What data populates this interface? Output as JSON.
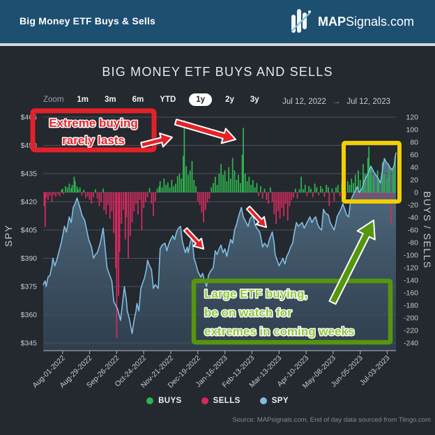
{
  "header": {
    "title": "Big Money ETF Buys & Sells",
    "brand_bold": "MAP",
    "brand_rest": "Signals.com"
  },
  "chart": {
    "title": "BIG MONEY ETF BUYS AND SELLS",
    "toolbar": {
      "zoom_label": "Zoom",
      "ranges": [
        "1m",
        "3m",
        "6m",
        "YTD",
        "1y",
        "2y",
        "3y"
      ],
      "selected": "1y",
      "date_from": "Jul 12, 2022",
      "date_arrow": "→",
      "date_to": "Jul 12, 2023"
    },
    "legend": [
      {
        "label": "BUYS",
        "color": "#2db44d"
      },
      {
        "label": "SELLS",
        "color": "#d42a5e"
      },
      {
        "label": "SPY",
        "color": "#7fbde0"
      }
    ],
    "source": "Source: MAPsignals.com, End of day data sourced from Tiingo.com"
  },
  "annotations": {
    "red_box": {
      "lines": [
        "Extreme buying",
        "rarely lasts"
      ],
      "color": "#e8262b",
      "border": "#e32228"
    },
    "green_box": {
      "lines": [
        "Large ETF buying,",
        "be on watch for",
        "extremes in coming weeks"
      ],
      "color": "#8fc83e",
      "border": "#57950e"
    },
    "yellow_box": {
      "border": "#f2cf04"
    }
  },
  "chart_data": {
    "type": "combo: bar (buys/sells flows, right axis) + area-line (SPY price, left axis)",
    "x_unit": "calendar days since Jul 12, 2022",
    "x_range_label": [
      "Jul 12, 2022",
      "Jul 12, 2023"
    ],
    "left_axis": {
      "title": "SPY",
      "ylim": [
        345,
        465
      ],
      "tick_step": 15,
      "tick_labels": [
        "$465",
        "$450",
        "$435",
        "$420",
        "$405",
        "$390",
        "$375",
        "$360",
        "$345"
      ]
    },
    "right_axis": {
      "title": "BUYS / SELLS",
      "ylim": [
        -240,
        120
      ],
      "tick_step": 20,
      "tick_labels": [
        120,
        100,
        80,
        60,
        40,
        20,
        0,
        -20,
        -40,
        -60,
        -80,
        -100,
        -120,
        -140,
        -160,
        -180,
        -200,
        -220,
        -240
      ]
    },
    "x_ticks": [
      {
        "day": 20,
        "label": "Aug-01-2022"
      },
      {
        "day": 48,
        "label": "Aug-29-2022"
      },
      {
        "day": 76,
        "label": "Sep-26-2022"
      },
      {
        "day": 104,
        "label": "Oct-24-2022"
      },
      {
        "day": 132,
        "label": "Nov-21-2022"
      },
      {
        "day": 160,
        "label": "Dec-19-2022"
      },
      {
        "day": 188,
        "label": "Jan-16-2023"
      },
      {
        "day": 216,
        "label": "Feb-13-2023"
      },
      {
        "day": 244,
        "label": "Mar-13-2023"
      },
      {
        "day": 272,
        "label": "Apr-10-2023"
      },
      {
        "day": 300,
        "label": "May-08-2023"
      },
      {
        "day": 328,
        "label": "Jun-05-2023"
      },
      {
        "day": 356,
        "label": "Jul-03-2023"
      }
    ],
    "grid": true,
    "legend_position": "bottom-center",
    "spy": [
      [
        0,
        376
      ],
      [
        2,
        378
      ],
      [
        3,
        375
      ],
      [
        5,
        380
      ],
      [
        7,
        381
      ],
      [
        9,
        386
      ],
      [
        10,
        390
      ],
      [
        12,
        386
      ],
      [
        14,
        389
      ],
      [
        16,
        393
      ],
      [
        17,
        395
      ],
      [
        19,
        399
      ],
      [
        22,
        407
      ],
      [
        24,
        404
      ],
      [
        27,
        412
      ],
      [
        29,
        409
      ],
      [
        31,
        417
      ],
      [
        33,
        419
      ],
      [
        35,
        422
      ],
      [
        38,
        417
      ],
      [
        40,
        413
      ],
      [
        43,
        410
      ],
      [
        45,
        405
      ],
      [
        47,
        400
      ],
      [
        50,
        396
      ],
      [
        52,
        390
      ],
      [
        54,
        392
      ],
      [
        56,
        393
      ],
      [
        59,
        398
      ],
      [
        62,
        406
      ],
      [
        64,
        396
      ],
      [
        66,
        385
      ],
      [
        68,
        382
      ],
      [
        71,
        378
      ],
      [
        73,
        367
      ],
      [
        75,
        365
      ],
      [
        77,
        363
      ],
      [
        80,
        357
      ],
      [
        82,
        366
      ],
      [
        84,
        375
      ],
      [
        86,
        368
      ],
      [
        87,
        362
      ],
      [
        89,
        358
      ],
      [
        92,
        350
      ],
      [
        94,
        357
      ],
      [
        96,
        362
      ],
      [
        97,
        366
      ],
      [
        99,
        362
      ],
      [
        101,
        374
      ],
      [
        103,
        377
      ],
      [
        105,
        380
      ],
      [
        107,
        385
      ],
      [
        108,
        389
      ],
      [
        110,
        386
      ],
      [
        112,
        384
      ],
      [
        114,
        374
      ],
      [
        116,
        376
      ],
      [
        119,
        374
      ],
      [
        121,
        395
      ],
      [
        123,
        397
      ],
      [
        126,
        398
      ],
      [
        128,
        394
      ],
      [
        129,
        396
      ],
      [
        131,
        399
      ],
      [
        134,
        402
      ],
      [
        136,
        400
      ],
      [
        138,
        404
      ],
      [
        140,
        406
      ],
      [
        142,
        407
      ],
      [
        144,
        399
      ],
      [
        147,
        393
      ],
      [
        149,
        396
      ],
      [
        150,
        393
      ],
      [
        152,
        398
      ],
      [
        154,
        402
      ],
      [
        156,
        390
      ],
      [
        158,
        387
      ],
      [
        160,
        383
      ],
      [
        163,
        380
      ],
      [
        165,
        382
      ],
      [
        167,
        378
      ],
      [
        169,
        375
      ],
      [
        171,
        381
      ],
      [
        173,
        383
      ],
      [
        176,
        385
      ],
      [
        178,
        394
      ],
      [
        180,
        392
      ],
      [
        182,
        395
      ],
      [
        184,
        397
      ],
      [
        186,
        393
      ],
      [
        188,
        395
      ],
      [
        190,
        391
      ],
      [
        192,
        396
      ],
      [
        194,
        400
      ],
      [
        196,
        398
      ],
      [
        198,
        405
      ],
      [
        200,
        408
      ],
      [
        202,
        412
      ],
      [
        205,
        417
      ],
      [
        207,
        412
      ],
      [
        209,
        410
      ],
      [
        212,
        407
      ],
      [
        214,
        411
      ],
      [
        217,
        413
      ],
      [
        219,
        408
      ],
      [
        221,
        406
      ],
      [
        224,
        404
      ],
      [
        226,
        399
      ],
      [
        227,
        396
      ],
      [
        229,
        398
      ],
      [
        232,
        396
      ],
      [
        234,
        400
      ],
      [
        237,
        404
      ],
      [
        239,
        398
      ],
      [
        240,
        392
      ],
      [
        242,
        389
      ],
      [
        244,
        386
      ],
      [
        246,
        388
      ],
      [
        248,
        390
      ],
      [
        250,
        387
      ],
      [
        252,
        391
      ],
      [
        254,
        393
      ],
      [
        256,
        396
      ],
      [
        258,
        398
      ],
      [
        260,
        404
      ],
      [
        262,
        409
      ],
      [
        264,
        407
      ],
      [
        266,
        408
      ],
      [
        268,
        409
      ],
      [
        270,
        406
      ],
      [
        272,
        408
      ],
      [
        274,
        410
      ],
      [
        276,
        412
      ],
      [
        278,
        409
      ],
      [
        280,
        411
      ],
      [
        282,
        412
      ],
      [
        284,
        408
      ],
      [
        286,
        406
      ],
      [
        288,
        405
      ],
      [
        290,
        416
      ],
      [
        292,
        414
      ],
      [
        295,
        413
      ],
      [
        297,
        409
      ],
      [
        299,
        407
      ],
      [
        301,
        405
      ],
      [
        303,
        409
      ],
      [
        304,
        412
      ],
      [
        306,
        414
      ],
      [
        308,
        416
      ],
      [
        310,
        419
      ],
      [
        312,
        416
      ],
      [
        314,
        413
      ],
      [
        316,
        412
      ],
      [
        318,
        420
      ],
      [
        320,
        423
      ],
      [
        322,
        425
      ],
      [
        325,
        428
      ],
      [
        327,
        425
      ],
      [
        330,
        427
      ],
      [
        332,
        431
      ],
      [
        334,
        433
      ],
      [
        336,
        435
      ],
      [
        339,
        439
      ],
      [
        341,
        437
      ],
      [
        343,
        435
      ],
      [
        346,
        433
      ],
      [
        349,
        430
      ],
      [
        351,
        437
      ],
      [
        353,
        443
      ],
      [
        355,
        441
      ],
      [
        357,
        440
      ],
      [
        359,
        438
      ],
      [
        361,
        437
      ],
      [
        363,
        439
      ],
      [
        365,
        446
      ]
    ],
    "flows": [
      [
        1,
        -22
      ],
      [
        2,
        -55
      ],
      [
        3,
        -8
      ],
      [
        5,
        -12
      ],
      [
        7,
        -5
      ],
      [
        9,
        -15
      ],
      [
        11,
        -4
      ],
      [
        13,
        -7
      ],
      [
        15,
        -3
      ],
      [
        17,
        -6
      ],
      [
        19,
        4
      ],
      [
        20,
        6
      ],
      [
        21,
        -3
      ],
      [
        23,
        10
      ],
      [
        25,
        8
      ],
      [
        27,
        14
      ],
      [
        29,
        7
      ],
      [
        30,
        12
      ],
      [
        32,
        25
      ],
      [
        33,
        18
      ],
      [
        35,
        10
      ],
      [
        36,
        5
      ],
      [
        38,
        8
      ],
      [
        40,
        -5
      ],
      [
        42,
        4
      ],
      [
        44,
        -9
      ],
      [
        46,
        -6
      ],
      [
        48,
        -12
      ],
      [
        50,
        -18
      ],
      [
        52,
        -8
      ],
      [
        54,
        5
      ],
      [
        56,
        -10
      ],
      [
        58,
        -22
      ],
      [
        60,
        -15
      ],
      [
        62,
        6
      ],
      [
        63,
        -28
      ],
      [
        65,
        -35
      ],
      [
        67,
        -20
      ],
      [
        69,
        -42
      ],
      [
        71,
        -30
      ],
      [
        73,
        -65
      ],
      [
        75,
        -120
      ],
      [
        76,
        -232
      ],
      [
        78,
        -165
      ],
      [
        79,
        -95
      ],
      [
        81,
        -50
      ],
      [
        83,
        -28
      ],
      [
        85,
        -75
      ],
      [
        86,
        -40
      ],
      [
        88,
        -105
      ],
      [
        90,
        -70
      ],
      [
        92,
        -48
      ],
      [
        94,
        -30
      ],
      [
        96,
        -18
      ],
      [
        98,
        -35
      ],
      [
        100,
        -12
      ],
      [
        102,
        -60
      ],
      [
        104,
        -25
      ],
      [
        106,
        -15
      ],
      [
        108,
        -8
      ],
      [
        110,
        7
      ],
      [
        112,
        -18
      ],
      [
        114,
        -38
      ],
      [
        116,
        -14
      ],
      [
        118,
        6
      ],
      [
        120,
        10
      ],
      [
        121,
        18
      ],
      [
        123,
        8
      ],
      [
        125,
        22
      ],
      [
        127,
        12
      ],
      [
        129,
        16
      ],
      [
        131,
        8
      ],
      [
        133,
        20
      ],
      [
        135,
        10
      ],
      [
        137,
        14
      ],
      [
        139,
        26
      ],
      [
        141,
        30
      ],
      [
        143,
        22
      ],
      [
        145,
        58
      ],
      [
        146,
        115
      ],
      [
        148,
        42
      ],
      [
        150,
        28
      ],
      [
        152,
        35
      ],
      [
        154,
        50
      ],
      [
        156,
        20
      ],
      [
        158,
        10
      ],
      [
        160,
        -14
      ],
      [
        162,
        -20
      ],
      [
        164,
        -32
      ],
      [
        166,
        -48
      ],
      [
        168,
        -28
      ],
      [
        170,
        -16
      ],
      [
        172,
        -10
      ],
      [
        174,
        8
      ],
      [
        176,
        15
      ],
      [
        178,
        25
      ],
      [
        180,
        12
      ],
      [
        182,
        30
      ],
      [
        184,
        45
      ],
      [
        186,
        28
      ],
      [
        188,
        35
      ],
      [
        190,
        18
      ],
      [
        192,
        40
      ],
      [
        194,
        22
      ],
      [
        196,
        55
      ],
      [
        198,
        35
      ],
      [
        200,
        20
      ],
      [
        202,
        28
      ],
      [
        204,
        15
      ],
      [
        206,
        60
      ],
      [
        207,
        103
      ],
      [
        209,
        30
      ],
      [
        211,
        18
      ],
      [
        213,
        25
      ],
      [
        215,
        12
      ],
      [
        217,
        20
      ],
      [
        219,
        8
      ],
      [
        221,
        15
      ],
      [
        223,
        -6
      ],
      [
        225,
        10
      ],
      [
        227,
        -10
      ],
      [
        229,
        6
      ],
      [
        231,
        -12
      ],
      [
        233,
        -18
      ],
      [
        235,
        8
      ],
      [
        237,
        -15
      ],
      [
        239,
        -35
      ],
      [
        241,
        -50
      ],
      [
        243,
        -30
      ],
      [
        245,
        -42
      ],
      [
        247,
        -25
      ],
      [
        249,
        -38
      ],
      [
        251,
        -18
      ],
      [
        253,
        -45
      ],
      [
        255,
        -22
      ],
      [
        257,
        -12
      ],
      [
        259,
        -8
      ],
      [
        261,
        6
      ],
      [
        263,
        -10
      ],
      [
        265,
        5
      ],
      [
        267,
        25
      ],
      [
        269,
        5
      ],
      [
        271,
        12
      ],
      [
        273,
        -6
      ],
      [
        275,
        10
      ],
      [
        277,
        6
      ],
      [
        279,
        -8
      ],
      [
        281,
        14
      ],
      [
        283,
        8
      ],
      [
        285,
        -5
      ],
      [
        287,
        10
      ],
      [
        289,
        6
      ],
      [
        291,
        -7
      ],
      [
        293,
        12
      ],
      [
        295,
        8
      ],
      [
        296,
        -22
      ],
      [
        299,
        6
      ],
      [
        301,
        -14
      ],
      [
        303,
        8
      ],
      [
        305,
        12
      ],
      [
        307,
        -6
      ],
      [
        309,
        15
      ],
      [
        311,
        10
      ],
      [
        313,
        -8
      ],
      [
        315,
        18
      ],
      [
        317,
        12
      ],
      [
        319,
        22
      ],
      [
        321,
        15
      ],
      [
        323,
        28
      ],
      [
        324,
        -8
      ],
      [
        326,
        35
      ],
      [
        328,
        20
      ],
      [
        329,
        -10
      ],
      [
        331,
        45
      ],
      [
        333,
        30
      ],
      [
        334,
        -12
      ],
      [
        336,
        55
      ],
      [
        337,
        73
      ],
      [
        339,
        40
      ],
      [
        340,
        -10
      ],
      [
        342,
        25
      ],
      [
        344,
        -14
      ],
      [
        346,
        35
      ],
      [
        347,
        18
      ],
      [
        349,
        -12
      ],
      [
        351,
        48
      ],
      [
        353,
        30
      ],
      [
        354,
        -10
      ],
      [
        356,
        22
      ],
      [
        358,
        40
      ],
      [
        360,
        -50
      ],
      [
        362,
        35
      ],
      [
        364,
        58
      ]
    ]
  },
  "colors": {
    "header_bg": "#1d4f71",
    "page_bg": "#24282f",
    "grid": "#4b525c",
    "axis_text": "#c6cbd1",
    "buys_green": "#2db44d",
    "sells_pink": "#d42a5e",
    "spy_line": "#82bfe3",
    "annotation_red": "#e32228",
    "annotation_yellow": "#f2cf04",
    "annotation_green": "#57950e"
  }
}
